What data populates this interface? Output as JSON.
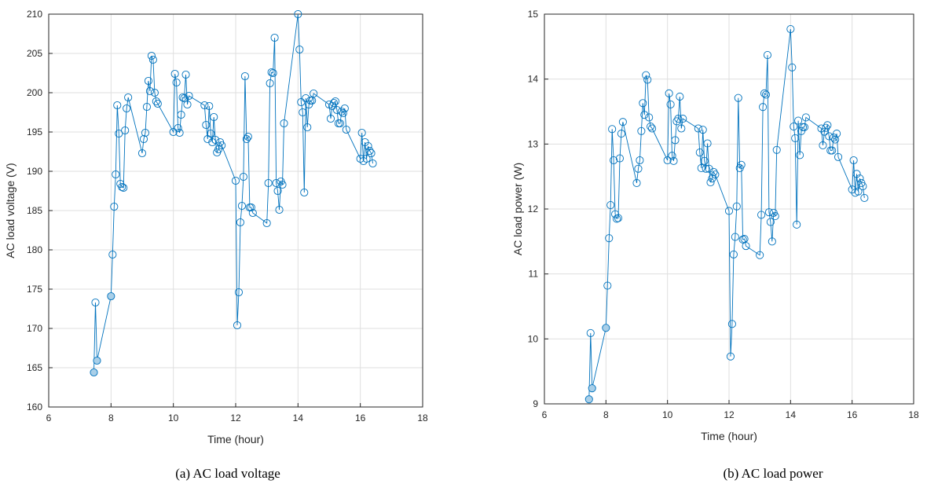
{
  "chart_data": [
    {
      "type": "line",
      "caption": "(a)  AC load voltage",
      "xlabel": "Time (hour)",
      "ylabel": "AC load voltage (V)",
      "xlim": [
        6,
        18
      ],
      "ylim": [
        160,
        210
      ],
      "xticks": [
        6,
        8,
        10,
        12,
        14,
        16,
        18
      ],
      "yticks": [
        160,
        165,
        170,
        175,
        180,
        185,
        190,
        195,
        200,
        205,
        210
      ],
      "grid": true,
      "color": "#0072BD",
      "marker": "circle",
      "series": [
        {
          "x": [
            7.45,
            7.5,
            7.55,
            8.0,
            8.05,
            8.1,
            8.15,
            8.2,
            8.25,
            8.3,
            8.35,
            8.4,
            8.45,
            8.5,
            8.55,
            9.0,
            9.05,
            9.1,
            9.15,
            9.2,
            9.25,
            9.3,
            9.35,
            9.4,
            9.45,
            9.5,
            10.0,
            10.05,
            10.1,
            10.15,
            10.2,
            10.25,
            10.3,
            10.35,
            10.4,
            10.45,
            10.5,
            11.0,
            11.05,
            11.1,
            11.15,
            11.2,
            11.25,
            11.3,
            11.35,
            11.4,
            11.45,
            11.5,
            11.55,
            12.0,
            12.05,
            12.1,
            12.15,
            12.2,
            12.25,
            12.3,
            12.35,
            12.4,
            12.45,
            12.5,
            12.55,
            13.0,
            13.05,
            13.1,
            13.15,
            13.2,
            13.25,
            13.3,
            13.35,
            13.4,
            13.45,
            13.5,
            13.55,
            14.0,
            14.05,
            14.1,
            14.15,
            14.2,
            14.25,
            14.3,
            14.35,
            14.4,
            14.45,
            14.5,
            15.0,
            15.05,
            15.1,
            15.15,
            15.2,
            15.25,
            15.3,
            15.35,
            15.4,
            15.45,
            15.5,
            15.55,
            16.0,
            16.05,
            16.1,
            16.15,
            16.2,
            16.25,
            16.3,
            16.35,
            16.4
          ],
          "y": [
            164.4,
            173.3,
            165.9,
            174.1,
            179.4,
            185.5,
            189.6,
            198.4,
            194.8,
            188.4,
            188.0,
            187.9,
            195.2,
            198.0,
            199.4,
            192.3,
            194.1,
            194.9,
            198.2,
            201.5,
            200.2,
            204.7,
            204.2,
            200.0,
            198.9,
            198.6,
            195.0,
            202.4,
            201.3,
            195.5,
            194.9,
            197.2,
            199.4,
            199.3,
            202.3,
            198.5,
            199.6,
            198.4,
            195.9,
            194.1,
            198.3,
            194.8,
            193.7,
            196.9,
            194.0,
            192.4,
            192.8,
            193.7,
            193.3,
            188.8,
            170.4,
            174.6,
            183.5,
            185.6,
            189.3,
            202.1,
            194.1,
            194.4,
            185.4,
            185.4,
            184.7,
            183.4,
            188.5,
            201.2,
            202.6,
            202.5,
            207.0,
            188.5,
            187.5,
            185.1,
            188.7,
            188.3,
            196.1,
            210.0,
            205.5,
            198.8,
            197.5,
            187.3,
            199.3,
            195.6,
            198.5,
            199.0,
            199.0,
            199.9,
            198.5,
            196.7,
            198.3,
            198.7,
            198.9,
            197.8,
            196.1,
            196.1,
            197.6,
            197.4,
            198.0,
            195.3,
            191.6,
            194.9,
            191.3,
            193.7,
            191.6,
            193.2,
            192.6,
            192.3,
            191.0
          ],
          "highlight": [
            0,
            2,
            3
          ]
        }
      ]
    },
    {
      "type": "line",
      "caption": "(b) AC load power",
      "xlabel": "Time (hour)",
      "ylabel": "AC load power (W)",
      "xlim": [
        6,
        18
      ],
      "ylim": [
        9,
        15
      ],
      "xticks": [
        6,
        8,
        10,
        12,
        14,
        16,
        18
      ],
      "yticks": [
        9,
        10,
        11,
        12,
        13,
        14,
        15
      ],
      "grid": true,
      "color": "#0072BD",
      "marker": "circle",
      "series": [
        {
          "x": [
            7.45,
            7.5,
            7.55,
            8.0,
            8.05,
            8.1,
            8.15,
            8.2,
            8.25,
            8.3,
            8.35,
            8.4,
            8.45,
            8.5,
            8.55,
            9.0,
            9.05,
            9.1,
            9.15,
            9.2,
            9.25,
            9.3,
            9.35,
            9.4,
            9.45,
            9.5,
            10.0,
            10.05,
            10.1,
            10.15,
            10.2,
            10.25,
            10.3,
            10.35,
            10.4,
            10.45,
            10.5,
            11.0,
            11.05,
            11.1,
            11.15,
            11.2,
            11.25,
            11.3,
            11.35,
            11.4,
            11.45,
            11.5,
            11.55,
            12.0,
            12.05,
            12.1,
            12.15,
            12.2,
            12.25,
            12.3,
            12.35,
            12.4,
            12.45,
            12.5,
            12.55,
            13.0,
            13.05,
            13.1,
            13.15,
            13.2,
            13.25,
            13.3,
            13.35,
            13.4,
            13.45,
            13.5,
            13.55,
            14.0,
            14.05,
            14.1,
            14.15,
            14.2,
            14.25,
            14.3,
            14.35,
            14.4,
            14.45,
            14.5,
            15.0,
            15.05,
            15.1,
            15.15,
            15.2,
            15.25,
            15.3,
            15.35,
            15.4,
            15.45,
            15.5,
            15.55,
            16.0,
            16.05,
            16.1,
            16.15,
            16.2,
            16.25,
            16.3,
            16.35,
            16.4
          ],
          "y": [
            9.07,
            10.09,
            9.24,
            10.17,
            10.82,
            11.55,
            12.06,
            13.23,
            12.75,
            11.92,
            11.85,
            11.86,
            12.78,
            13.16,
            13.34,
            12.4,
            12.62,
            12.75,
            13.2,
            13.63,
            13.45,
            14.06,
            13.99,
            13.41,
            13.27,
            13.24,
            12.75,
            13.78,
            13.61,
            12.82,
            12.74,
            13.06,
            13.35,
            13.39,
            13.73,
            13.24,
            13.39,
            13.24,
            12.87,
            12.63,
            13.22,
            12.74,
            12.62,
            13.01,
            12.62,
            12.41,
            12.47,
            12.57,
            12.53,
            11.97,
            9.73,
            10.23,
            11.3,
            11.57,
            12.04,
            13.71,
            12.63,
            12.68,
            11.53,
            11.54,
            11.43,
            11.29,
            11.91,
            13.57,
            13.78,
            13.76,
            14.37,
            11.95,
            11.8,
            11.5,
            11.94,
            11.89,
            12.91,
            14.77,
            14.18,
            13.27,
            13.09,
            11.76,
            13.36,
            12.83,
            13.2,
            13.26,
            13.26,
            13.41,
            13.24,
            12.98,
            13.19,
            13.25,
            13.29,
            13.12,
            12.9,
            12.9,
            13.1,
            13.07,
            13.16,
            12.8,
            12.3,
            12.75,
            12.25,
            12.54,
            12.27,
            12.47,
            12.4,
            12.35,
            12.17
          ],
          "highlight": [
            0,
            2,
            3
          ]
        }
      ]
    }
  ]
}
